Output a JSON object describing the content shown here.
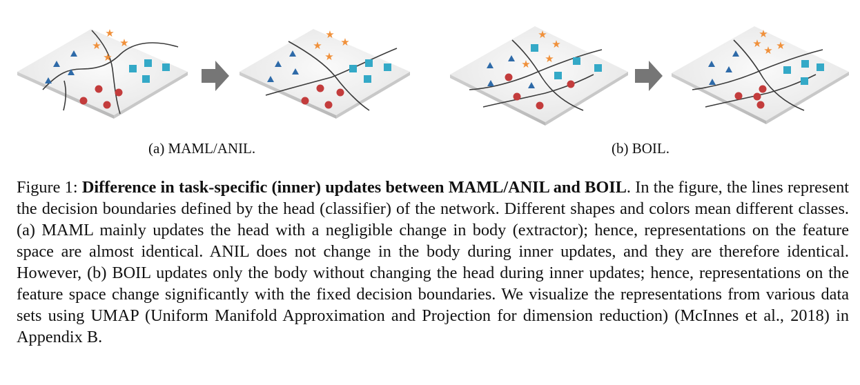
{
  "figure": {
    "subcaptions": {
      "a": "(a) MAML/ANIL.",
      "b": "(b) BOIL."
    },
    "colors": {
      "triangle": "#2e6aa8",
      "circle": "#c33c3c",
      "star": "#f0903a",
      "square": "#34a9c7",
      "arrow": "#767676",
      "plane": "#f1f1f1",
      "boundary": "#3a3a3a"
    },
    "icons": [
      "triangle-marker-icon",
      "circle-marker-icon",
      "star-marker-icon",
      "square-marker-icon",
      "right-arrow-icon"
    ]
  },
  "caption": {
    "label": "Figure 1: ",
    "title": "Difference in task-specific (inner) updates between MAML/ANIL and BOIL",
    "body": ". In the figure, the lines represent the decision boundaries defined by the head (classifier) of the network. Different shapes and colors mean different classes.  (a) MAML mainly updates the head with a negligible change in body (extractor); hence, representations on the feature space are almost identical. ANIL does not change in the body during inner updates, and they are therefore identical. However, (b) BOIL updates only the body without changing the head during inner updates; hence, representations on the feature space change significantly with the fixed decision boundaries.  We visualize the representations from various data sets using UMAP (Uniform Manifold Approximation and Projection for dimension reduction) (McInnes et al., 2018) in Appendix B."
  }
}
